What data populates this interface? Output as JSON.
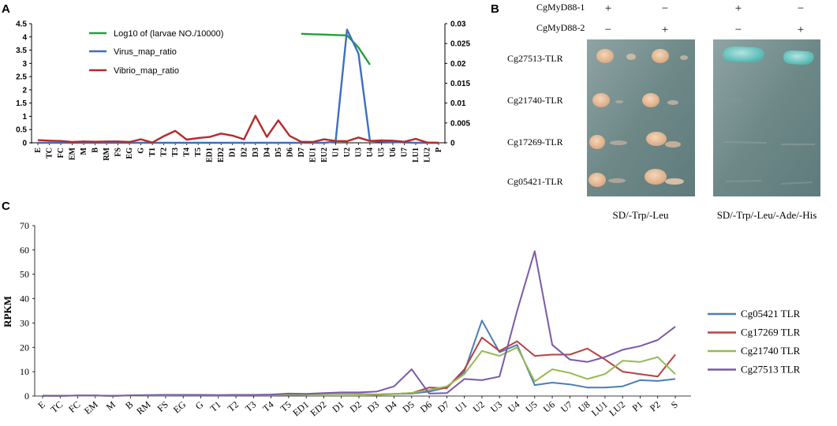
{
  "panel_labels": {
    "a": "A",
    "b": "B",
    "c": "C"
  },
  "chart_data": [
    {
      "type": "line",
      "panel": "A",
      "title": "",
      "categories": [
        "E",
        "TC",
        "FC",
        "EM",
        "M",
        "B",
        "RM",
        "FS",
        "EG",
        "G",
        "T1",
        "T2",
        "T3",
        "T4",
        "T5",
        "ED1",
        "ED2",
        "D1",
        "D2",
        "D3",
        "D4",
        "D5",
        "D6",
        "D7",
        "EU1",
        "EU2",
        "U1",
        "U2",
        "U3",
        "U4",
        "U5",
        "U6",
        "U7",
        "LU1",
        "LU2",
        "P"
      ],
      "left_axis": {
        "ylim": [
          0,
          4.5
        ],
        "ticks": [
          "0",
          "0.5",
          "1",
          "1.5",
          "2",
          "2.5",
          "3",
          "3.5",
          "4",
          "4.5"
        ]
      },
      "right_axis": {
        "ylim": [
          0,
          0.03
        ],
        "ticks": [
          "0",
          "0.005",
          "0.01",
          "0.015",
          "0.02",
          "0.025",
          "0.03"
        ]
      },
      "legend": [
        "Log10 of (larvae NO./10000)",
        "Virus_map_ratio",
        "Vibrio_map_ratio"
      ],
      "series": [
        {
          "name": "Log10 of (larvae NO./10000)",
          "axis": "left",
          "color": "#22a03a",
          "values": [
            null,
            null,
            null,
            null,
            null,
            null,
            null,
            null,
            null,
            null,
            null,
            null,
            null,
            null,
            null,
            null,
            null,
            null,
            null,
            null,
            null,
            null,
            null,
            4.12,
            4.1,
            4.09,
            4.07,
            4.06,
            3.6,
            2.95,
            null,
            null,
            null,
            null,
            null,
            null
          ]
        },
        {
          "name": "Virus_map_ratio",
          "axis": "right",
          "color": "#3d6fbf",
          "values": [
            0,
            0,
            0,
            0,
            0,
            0,
            0,
            0,
            0,
            0,
            0,
            0,
            0,
            0,
            0,
            0,
            0,
            0,
            0,
            0,
            0,
            0,
            0,
            0,
            0,
            0,
            0.0003,
            0.0285,
            0.0225,
            0.0005,
            0.0003,
            0.0002,
            0.0001,
            0,
            0,
            0
          ]
        },
        {
          "name": "Vibrio_map_ratio",
          "axis": "left",
          "color": "#b52a2a",
          "values": [
            0.1,
            0.08,
            0.07,
            0.03,
            0.05,
            0.04,
            0.05,
            0.05,
            0.03,
            0.13,
            0.01,
            0.25,
            0.45,
            0.12,
            0.18,
            0.22,
            0.35,
            0.27,
            0.13,
            1.02,
            0.22,
            0.85,
            0.26,
            0.04,
            0.03,
            0.13,
            0.07,
            0.06,
            0.2,
            0.07,
            0.09,
            0.08,
            0.04,
            0.15,
            0.01,
            0.0
          ]
        }
      ]
    },
    {
      "type": "line",
      "panel": "C",
      "title": "",
      "ylabel": "RPKM",
      "xlabel": "",
      "ylim": [
        0,
        70
      ],
      "yticks": [
        "0",
        "10",
        "20",
        "30",
        "40",
        "50",
        "60",
        "70"
      ],
      "categories": [
        "E",
        "TC",
        "FC",
        "EM",
        "M",
        "B",
        "RM",
        "FS",
        "EG",
        "G",
        "T1",
        "T2",
        "T3",
        "T4",
        "T5",
        "ED1",
        "ED2",
        "D1",
        "D2",
        "D3",
        "D4",
        "D5",
        "D6",
        "D7",
        "U1",
        "U2",
        "U3",
        "U4",
        "U5",
        "U6",
        "U7",
        "U8",
        "LU1",
        "LU2",
        "P1",
        "P2",
        "S"
      ],
      "legend_position": "right",
      "series": [
        {
          "name": "Cg05421 TLR",
          "color": "#4a7eb5",
          "values": [
            0.2,
            0.1,
            0.2,
            0.2,
            0.1,
            0.2,
            0.3,
            0.3,
            0.3,
            0.3,
            0.3,
            0.3,
            0.4,
            0.4,
            0.5,
            0.6,
            0.7,
            0.8,
            0.7,
            0.6,
            0.8,
            1.0,
            1.8,
            3.5,
            10,
            31,
            18,
            21,
            4.5,
            5.5,
            4.8,
            3.5,
            3.5,
            4,
            6.5,
            6.2,
            7
          ]
        },
        {
          "name": "Cg17269 TLR",
          "color": "#b54242",
          "values": [
            0.1,
            0.1,
            0.2,
            0.2,
            0.1,
            0.2,
            0.3,
            0.4,
            0.4,
            0.4,
            0.3,
            0.4,
            0.4,
            0.4,
            0.6,
            0.7,
            0.8,
            0.9,
            0.8,
            0.6,
            0.9,
            1.2,
            3.5,
            3.2,
            11,
            24,
            18.5,
            22.5,
            16.5,
            17,
            17,
            19.5,
            15,
            10,
            9,
            8,
            17
          ]
        },
        {
          "name": "Cg21740 TLR",
          "color": "#98b954",
          "values": [
            0.1,
            0.1,
            0.2,
            0.2,
            0.1,
            0.2,
            0.3,
            0.3,
            0.4,
            0.4,
            0.3,
            0.4,
            0.4,
            0.4,
            0.5,
            0.6,
            0.7,
            0.8,
            0.7,
            0.5,
            0.8,
            1.3,
            2.5,
            4.0,
            9,
            18.5,
            16.5,
            20,
            6,
            11,
            9.5,
            7,
            9,
            14.5,
            14,
            16,
            9
          ]
        },
        {
          "name": "Cg27513 TLR",
          "color": "#7a5aa8",
          "values": [
            0.1,
            0.1,
            0.2,
            0.2,
            0.1,
            0.3,
            0.4,
            0.5,
            0.5,
            0.5,
            0.4,
            0.5,
            0.5,
            0.6,
            1.0,
            0.9,
            1.2,
            1.5,
            1.5,
            1.8,
            4.0,
            11,
            1.0,
            1.2,
            7,
            6.5,
            8,
            35,
            59.5,
            21,
            15,
            14,
            16,
            19,
            20.5,
            23,
            28.5
          ]
        }
      ]
    }
  ],
  "panel_b": {
    "rows": [
      "CgMyD88-1",
      "CgMyD88-2"
    ],
    "signs": {
      "r1": [
        "+",
        "−",
        "+",
        "−"
      ],
      "r2": [
        "−",
        "+",
        "−",
        "+"
      ]
    },
    "tlrs": [
      "Cg27513-TLR",
      "Cg21740-TLR",
      "Cg17269-TLR",
      "Cg05421-TLR"
    ],
    "media": [
      "SD/-Trp/-Leu",
      "SD/-Trp/-Leu/-Ade/-His"
    ]
  }
}
